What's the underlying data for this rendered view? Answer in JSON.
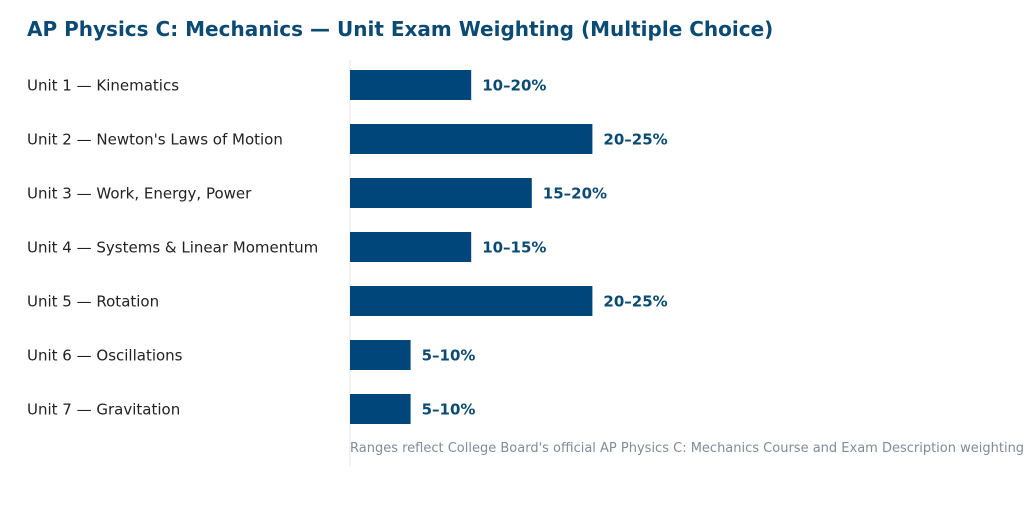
{
  "chart_data": {
    "type": "bar",
    "orientation": "horizontal",
    "title": "AP Physics C: Mechanics — Unit Exam Weighting (Multiple Choice)",
    "xlabel": "",
    "ylabel": "",
    "xlim": [
      0,
      25
    ],
    "grid": false,
    "legend": "none",
    "categories": [
      "Unit 1 — Kinematics",
      "Unit 2 — Newton's Laws of Motion",
      "Unit 3 — Work, Energy, Power",
      "Unit 4 — Systems & Linear Momentum",
      "Unit 5 — Rotation",
      "Unit 6 — Oscillations",
      "Unit 7 — Gravitation"
    ],
    "values": [
      10,
      20,
      15,
      10,
      20,
      5,
      5
    ],
    "value_labels": [
      "10–20%",
      "20–25%",
      "15–20%",
      "10–15%",
      "20–25%",
      "5–10%",
      "5–10%"
    ],
    "annotation": "Ranges reflect College Board's official AP Physics C: Mechanics Course and Exam Description weighting",
    "colors": {
      "bar": "#00467a",
      "title": "#0b4a72",
      "value_label": "#0b4a72",
      "category_label": "#222222",
      "annotation": "#7f8c99",
      "axis_line": "#e6e6e6"
    }
  }
}
